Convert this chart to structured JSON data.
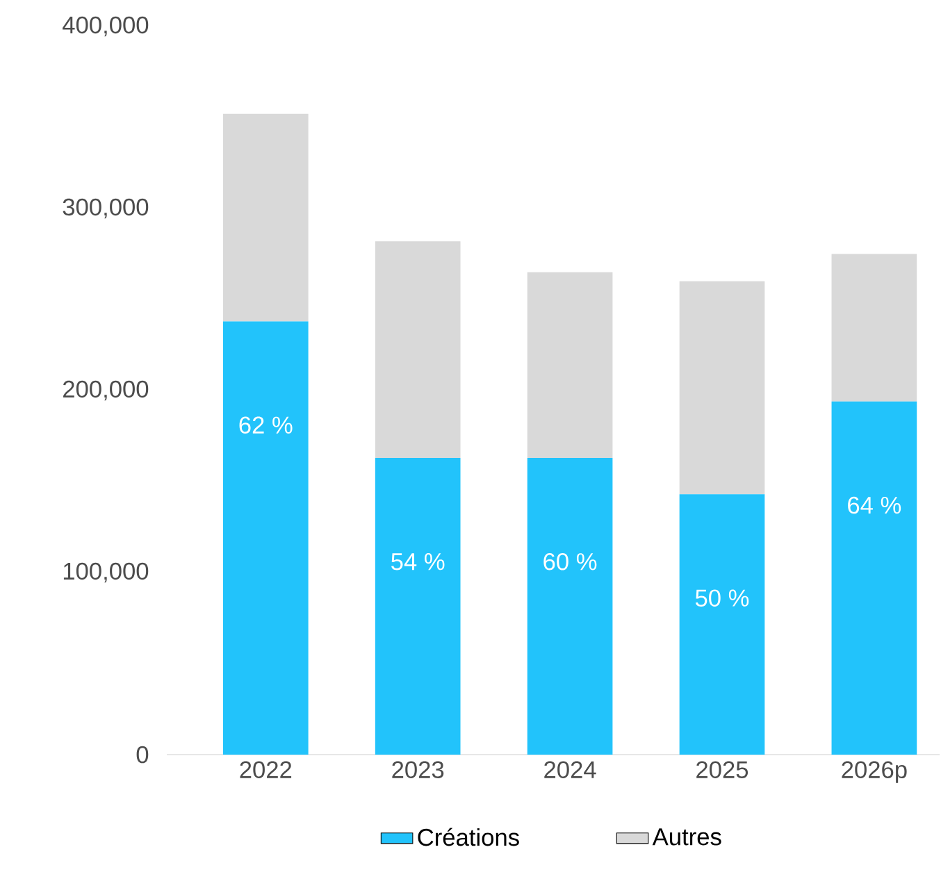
{
  "chart_data": {
    "type": "bar",
    "stacked": true,
    "categories": [
      "2022",
      "2023",
      "2024",
      "2025",
      "2026p"
    ],
    "series": [
      {
        "name": "Créations",
        "color": "#22c3fb",
        "values": [
          238000,
          163000,
          163000,
          143000,
          194000
        ]
      },
      {
        "name": "Autres",
        "color": "#d9d9d9",
        "values": [
          114000,
          119000,
          102000,
          117000,
          81000
        ]
      }
    ],
    "annotations": [
      "62 %",
      "54 %",
      "60 %",
      "50 %",
      "64 %"
    ],
    "ylim": [
      0,
      400000
    ],
    "yticks": [
      {
        "value": 0,
        "label": "0"
      },
      {
        "value": 100000,
        "label": "100,000"
      },
      {
        "value": 200000,
        "label": "200,000"
      },
      {
        "value": 300000,
        "label": "300,000"
      },
      {
        "value": 400000,
        "label": "400,000"
      }
    ],
    "legend": "bottom"
  }
}
